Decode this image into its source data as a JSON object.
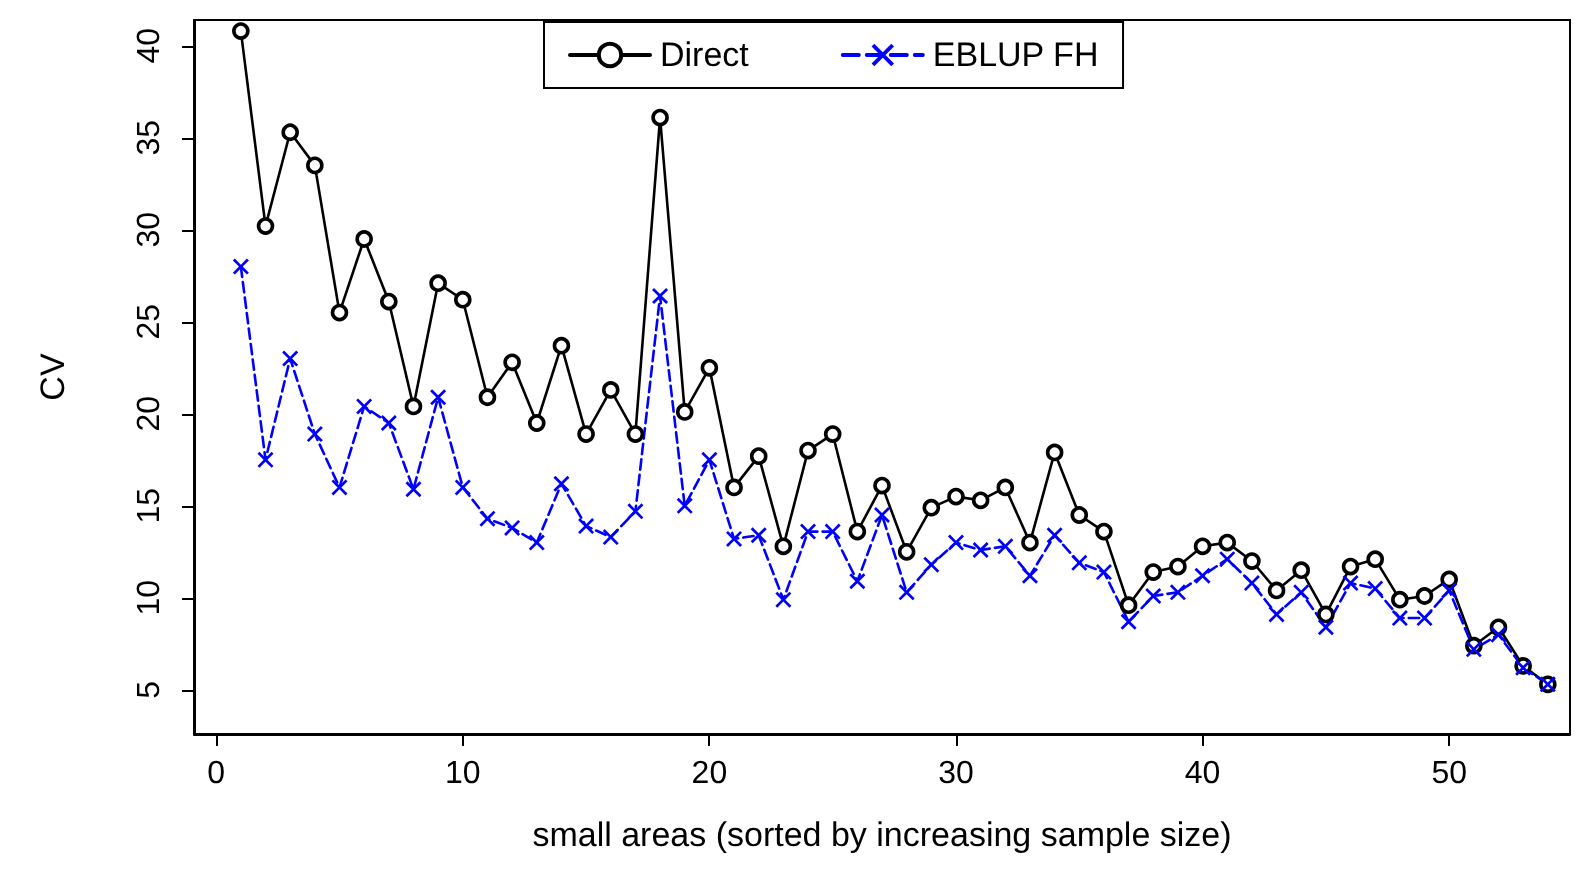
{
  "chart_data": {
    "type": "line",
    "xlabel": "small areas (sorted by increasing sample size)",
    "ylabel": "CV",
    "x": [
      1,
      2,
      3,
      4,
      5,
      6,
      7,
      8,
      9,
      10,
      11,
      12,
      13,
      14,
      15,
      16,
      17,
      18,
      19,
      20,
      21,
      22,
      23,
      24,
      25,
      26,
      27,
      28,
      29,
      30,
      31,
      32,
      33,
      34,
      35,
      36,
      37,
      38,
      39,
      40,
      41,
      42,
      43,
      44,
      45,
      46,
      47,
      48,
      49,
      50,
      51,
      52,
      53,
      54
    ],
    "series": [
      {
        "name": "Direct",
        "color": "#000000",
        "marker": "circle",
        "line_style": "solid",
        "values": [
          40.8,
          30.2,
          35.3,
          33.5,
          25.5,
          29.5,
          26.1,
          20.4,
          27.1,
          26.2,
          20.9,
          22.8,
          19.5,
          23.7,
          18.9,
          21.3,
          18.9,
          36.1,
          20.1,
          22.5,
          16.0,
          17.7,
          12.8,
          18.0,
          18.9,
          13.6,
          16.1,
          12.5,
          14.9,
          15.5,
          15.3,
          16.0,
          13.0,
          17.9,
          14.5,
          13.6,
          9.6,
          11.4,
          11.7,
          12.8,
          13.0,
          12.0,
          10.4,
          11.5,
          9.1,
          11.7,
          12.1,
          9.9,
          10.1,
          11.0,
          7.4,
          8.4,
          6.3,
          5.3
        ]
      },
      {
        "name": "EBLUP FH",
        "color": "#0000ff",
        "marker": "cross",
        "line_style": "dashed",
        "values": [
          28.0,
          17.5,
          23.0,
          18.9,
          16.0,
          20.4,
          19.5,
          15.9,
          20.9,
          16.0,
          14.3,
          13.8,
          13.0,
          16.2,
          13.9,
          13.3,
          14.7,
          26.4,
          15.0,
          17.5,
          13.2,
          13.4,
          9.9,
          13.6,
          13.6,
          10.9,
          14.5,
          10.3,
          11.8,
          13.0,
          12.6,
          12.8,
          11.2,
          13.4,
          11.9,
          11.4,
          8.7,
          10.1,
          10.3,
          11.2,
          12.1,
          10.8,
          9.1,
          10.3,
          8.4,
          10.8,
          10.5,
          8.9,
          8.9,
          10.4,
          7.2,
          8.0,
          6.2,
          5.3
        ]
      }
    ],
    "xlim": [
      -0.9,
      54.9
    ],
    "xticks": [
      0,
      10,
      20,
      30,
      40,
      50
    ],
    "ylim": [
      2.6,
      41.4
    ],
    "yticks": [
      5,
      10,
      15,
      20,
      25,
      30,
      35,
      40
    ],
    "grid": false,
    "legend": "top"
  }
}
